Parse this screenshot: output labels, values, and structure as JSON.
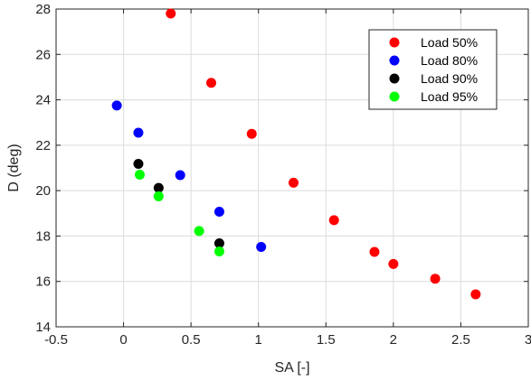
{
  "chart_data": {
    "type": "scatter",
    "xlabel": "SA [-]",
    "ylabel": "D (deg)",
    "xlim": [
      -0.5,
      3
    ],
    "ylim": [
      14,
      28
    ],
    "xticks": [
      -0.5,
      0,
      0.5,
      1,
      1.5,
      2,
      2.5,
      3
    ],
    "xtick_labels": [
      "-0.5",
      "0",
      "0.5",
      "1",
      "1.5",
      "2",
      "2.5",
      "3"
    ],
    "yticks": [
      14,
      16,
      18,
      20,
      22,
      24,
      26,
      28
    ],
    "ytick_labels": [
      "14",
      "16",
      "18",
      "20",
      "22",
      "24",
      "26",
      "28"
    ],
    "grid": true,
    "legend_position": "top-right",
    "series": [
      {
        "name": "Load 50%",
        "color": "#ff0000",
        "x": [
          0.35,
          0.65,
          0.95,
          1.26,
          1.56,
          1.86,
          2.0,
          2.31,
          2.61
        ],
        "y": [
          27.8,
          24.75,
          22.5,
          20.35,
          18.7,
          17.3,
          16.77,
          16.12,
          15.43
        ]
      },
      {
        "name": "Load 80%",
        "color": "#0000ff",
        "x": [
          -0.05,
          0.11,
          0.42,
          0.71,
          1.02
        ],
        "y": [
          23.75,
          22.55,
          20.68,
          19.07,
          17.52
        ]
      },
      {
        "name": "Load 90%",
        "color": "#000000",
        "x": [
          0.11,
          0.26,
          0.71
        ],
        "y": [
          21.18,
          20.12,
          17.68
        ]
      },
      {
        "name": "Load 95%",
        "color": "#00ff00",
        "x": [
          0.12,
          0.26,
          0.56,
          0.71
        ],
        "y": [
          20.7,
          19.75,
          18.22,
          17.32
        ]
      }
    ]
  }
}
